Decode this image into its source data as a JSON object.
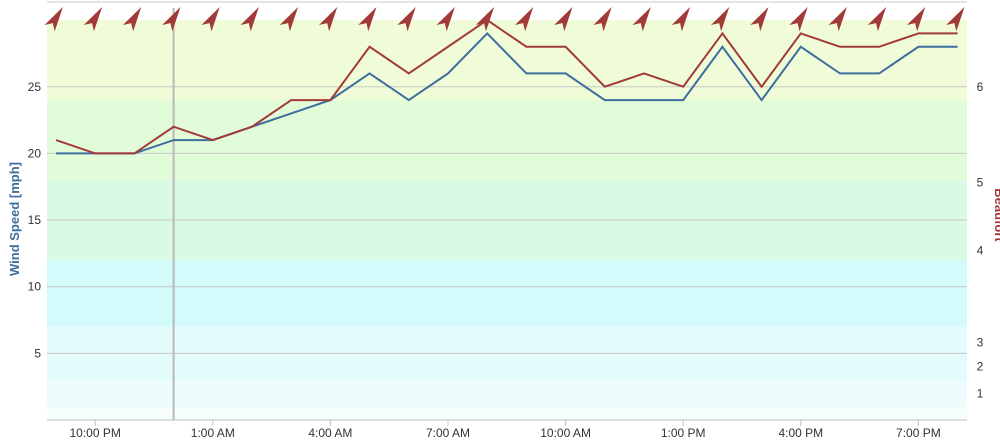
{
  "chart_data": {
    "type": "line",
    "ylabel_left": "Wind Speed [mph]",
    "ylabel_right": "Beaufort",
    "ylim": [
      0,
      30
    ],
    "y_ticks": [
      5,
      10,
      15,
      20,
      25
    ],
    "beaufort_ticks": [
      {
        "label": "1",
        "mph": 2
      },
      {
        "label": "2",
        "mph": 4
      },
      {
        "label": "3",
        "mph": 5.8
      },
      {
        "label": "4",
        "mph": 12.7
      },
      {
        "label": "5",
        "mph": 17.8
      },
      {
        "label": "6",
        "mph": 25
      }
    ],
    "beaufort_bands": [
      {
        "from": 0,
        "to": 1,
        "color": "#f5fdfd"
      },
      {
        "from": 1,
        "to": 3,
        "color": "#ecfcfc"
      },
      {
        "from": 3,
        "to": 7,
        "color": "#e3fbfb"
      },
      {
        "from": 7,
        "to": 12,
        "color": "#d3fbfb"
      },
      {
        "from": 12,
        "to": 18,
        "color": "#d9fae4"
      },
      {
        "from": 18,
        "to": 24,
        "color": "#e2fcda"
      },
      {
        "from": 24,
        "to": 30,
        "color": "#effcd7"
      }
    ],
    "x_tick_labels": [
      "10:00 PM",
      "1:00 AM",
      "4:00 AM",
      "7:00 AM",
      "10:00 AM",
      "1:00 PM",
      "4:00 PM",
      "7:00 PM"
    ],
    "x_tick_index": [
      1,
      4,
      7,
      10,
      13,
      16,
      19,
      22
    ],
    "current_time_index": 3,
    "series": [
      {
        "values": [
          20,
          20,
          20,
          21,
          21,
          22,
          23,
          24,
          26,
          24,
          26,
          29,
          26,
          26,
          24,
          24,
          24,
          28,
          24,
          28,
          26,
          26,
          28,
          28
        ],
        "color": "#3d6e9e"
      },
      {
        "values": [
          21,
          20,
          20,
          22,
          21,
          22,
          24,
          24,
          28,
          26,
          28,
          30,
          28,
          28,
          25,
          26,
          25,
          29,
          25,
          29,
          28,
          28,
          29,
          29
        ],
        "color": "#a33a3a"
      }
    ],
    "arrow_color": "#a33a3a",
    "grid": true
  }
}
